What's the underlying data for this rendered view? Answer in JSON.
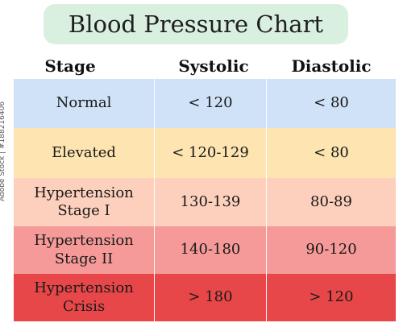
{
  "title": "Blood Pressure Chart",
  "headers": {
    "stage": "Stage",
    "systolic": "Systolic",
    "diastolic": "Diastolic"
  },
  "rows": [
    {
      "stage": "Normal",
      "systolic": "< 120",
      "diastolic": "< 80",
      "color": "#cfe2f7"
    },
    {
      "stage": "Elevated",
      "systolic": "< 120-129",
      "diastolic": "< 80",
      "color": "#fde4b0"
    },
    {
      "stage": "Hypertension\nStage I",
      "systolic": "130-139",
      "diastolic": "80-89",
      "color": "#fdd0bd"
    },
    {
      "stage": "Hypertension\nStage II",
      "systolic": "140-180",
      "diastolic": "90-120",
      "color": "#f59a98"
    },
    {
      "stage": "Hypertension\nCrisis",
      "systolic": "> 180",
      "diastolic": "> 120",
      "color": "#e84749"
    }
  ],
  "side_note": "Adobe Stock | #188216406"
}
